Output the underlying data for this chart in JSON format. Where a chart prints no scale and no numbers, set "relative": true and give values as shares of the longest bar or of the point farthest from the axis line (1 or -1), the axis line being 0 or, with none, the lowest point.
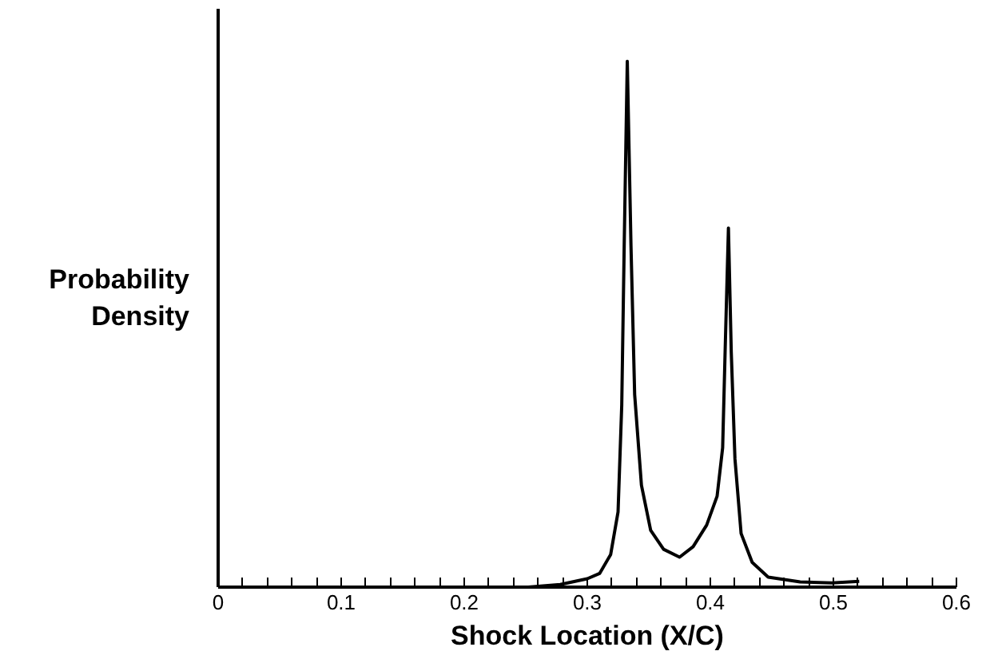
{
  "chart_data": {
    "type": "line",
    "relative": true,
    "xlabel": "Shock Location (X/C)",
    "ylabel": "Probability\nDensity",
    "xlim": [
      0,
      0.6
    ],
    "xticks": [
      0,
      {
        "value": 0.02,
        "label": null
      },
      {
        "value": 0.04,
        "label": null
      },
      {
        "value": 0.06,
        "label": null
      },
      {
        "value": 0.08,
        "label": null
      },
      0.1,
      {
        "value": 0.12,
        "label": null
      },
      {
        "value": 0.14,
        "label": null
      },
      {
        "value": 0.16,
        "label": null
      },
      {
        "value": 0.18,
        "label": null
      },
      0.2,
      {
        "value": 0.22,
        "label": null
      },
      {
        "value": 0.24,
        "label": null
      },
      {
        "value": 0.26,
        "label": null
      },
      {
        "value": 0.28,
        "label": null
      },
      0.3,
      {
        "value": 0.32,
        "label": null
      },
      {
        "value": 0.34,
        "label": null
      },
      {
        "value": 0.36,
        "label": null
      },
      {
        "value": 0.38,
        "label": null
      },
      0.4,
      {
        "value": 0.42,
        "label": null
      },
      {
        "value": 0.44,
        "label": null
      },
      {
        "value": 0.46,
        "label": null
      },
      {
        "value": 0.48,
        "label": null
      },
      0.5,
      {
        "value": 0.52,
        "label": null
      },
      {
        "value": 0.54,
        "label": null
      },
      {
        "value": 0.56,
        "label": null
      },
      {
        "value": 0.58,
        "label": null
      },
      0.6
    ],
    "grid": false,
    "marker": "none",
    "line_style": "solid",
    "series": [
      {
        "color": "#000000",
        "x": [
          0.252,
          0.278,
          0.3,
          0.31,
          0.319,
          0.325,
          0.328,
          0.33,
          0.3325,
          0.3355,
          0.3385,
          0.344,
          0.3515,
          0.362,
          0.375,
          0.386,
          0.397,
          0.4055,
          0.41,
          0.412,
          0.4147,
          0.417,
          0.42,
          0.425,
          0.434,
          0.447,
          0.473,
          0.499,
          0.521
        ],
        "values": [
          0,
          0.005,
          0.016,
          0.026,
          0.062,
          0.143,
          0.346,
          0.65,
          1.0,
          0.65,
          0.366,
          0.194,
          0.108,
          0.072,
          0.057,
          0.077,
          0.118,
          0.173,
          0.265,
          0.447,
          0.683,
          0.447,
          0.244,
          0.102,
          0.047,
          0.019,
          0.01,
          0.008,
          0.011
        ]
      }
    ]
  }
}
